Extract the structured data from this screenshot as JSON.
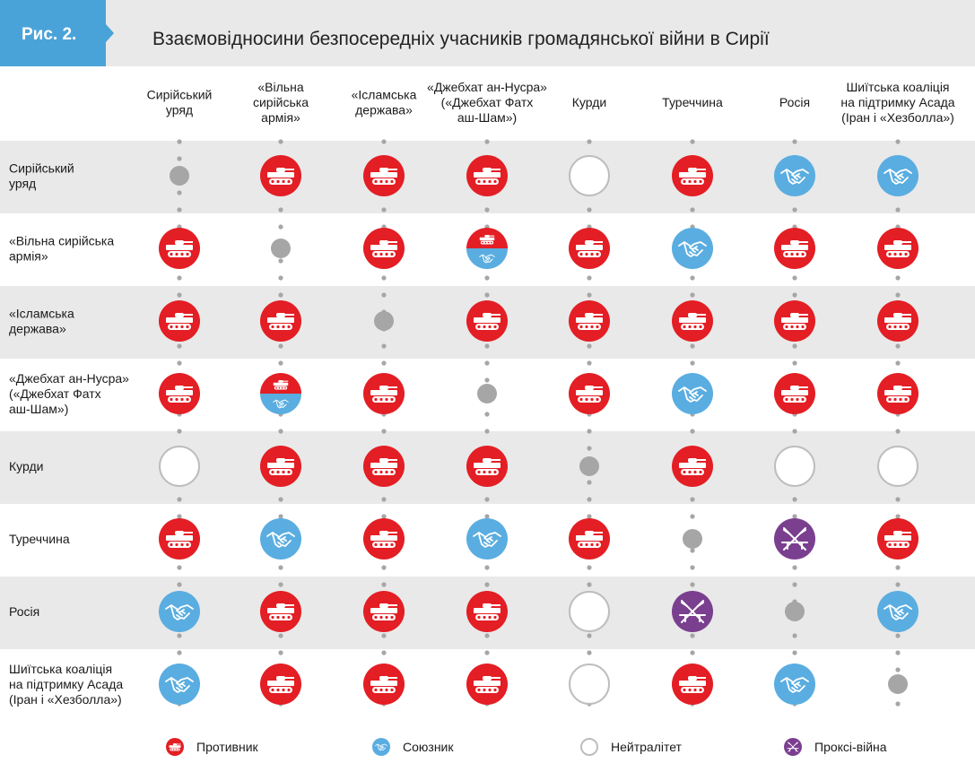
{
  "figure": {
    "label": "Рис. 2.",
    "title": "Взаємовідносини безпосередніх учасників громадянської війни в Сирії"
  },
  "columns": [
    [
      "Сирійський",
      "уряд"
    ],
    [
      "«Вільна",
      "сирійська",
      "армія»"
    ],
    [
      "«Ісламська",
      "держава»"
    ],
    [
      "«Джебхат ан-Нусра»",
      "(«Джебхат Фатх",
      "аш-Шам»)"
    ],
    [
      "Курди"
    ],
    [
      "Туреччина"
    ],
    [
      "Росія"
    ],
    [
      "Шиїтська коаліція",
      "на підтримку Асада",
      "(Іран і «Хезболла»)"
    ]
  ],
  "rows": [
    [
      "Сирійський",
      "уряд"
    ],
    [
      "«Вільна сирійська",
      "армія»"
    ],
    [
      "«Ісламська",
      "держава»"
    ],
    [
      "«Джебхат ан-Нусра»",
      "(«Джебхат Фатх",
      "аш-Шам»)"
    ],
    [
      "Курди"
    ],
    [
      "Туреччина"
    ],
    [
      "Росія"
    ],
    [
      "Шиїтська коаліція",
      "на підтримку Асада",
      "(Іран і «Хезболла»)"
    ]
  ],
  "matrix": [
    [
      "self",
      "enemy",
      "enemy",
      "enemy",
      "neutral",
      "enemy",
      "ally",
      "ally"
    ],
    [
      "enemy",
      "self",
      "enemy",
      "enemy-ally",
      "enemy",
      "ally",
      "enemy",
      "enemy"
    ],
    [
      "enemy",
      "enemy",
      "self",
      "enemy",
      "enemy",
      "enemy",
      "enemy",
      "enemy"
    ],
    [
      "enemy",
      "enemy-ally",
      "enemy",
      "self",
      "enemy",
      "ally",
      "enemy",
      "enemy"
    ],
    [
      "neutral",
      "enemy",
      "enemy",
      "enemy",
      "self",
      "enemy",
      "neutral",
      "neutral"
    ],
    [
      "enemy",
      "ally",
      "enemy",
      "ally",
      "enemy",
      "self",
      "proxy",
      "enemy"
    ],
    [
      "ally",
      "enemy",
      "enemy",
      "enemy",
      "neutral",
      "proxy",
      "self",
      "ally"
    ],
    [
      "ally",
      "enemy",
      "enemy",
      "enemy",
      "neutral",
      "enemy",
      "ally",
      "self"
    ]
  ],
  "legend": {
    "enemy": "Противник",
    "ally": "Союзник",
    "neutral": "Нейтралітет",
    "proxy": "Проксі-війна"
  },
  "colors": {
    "enemy": "#e31e24",
    "ally": "#5aade0",
    "proxy": "#7b3f8f",
    "neutral_stroke": "#bdbdbd",
    "self": "#a6a6a6",
    "band": "#e9e9e9",
    "accent": "#4aa3d8"
  }
}
